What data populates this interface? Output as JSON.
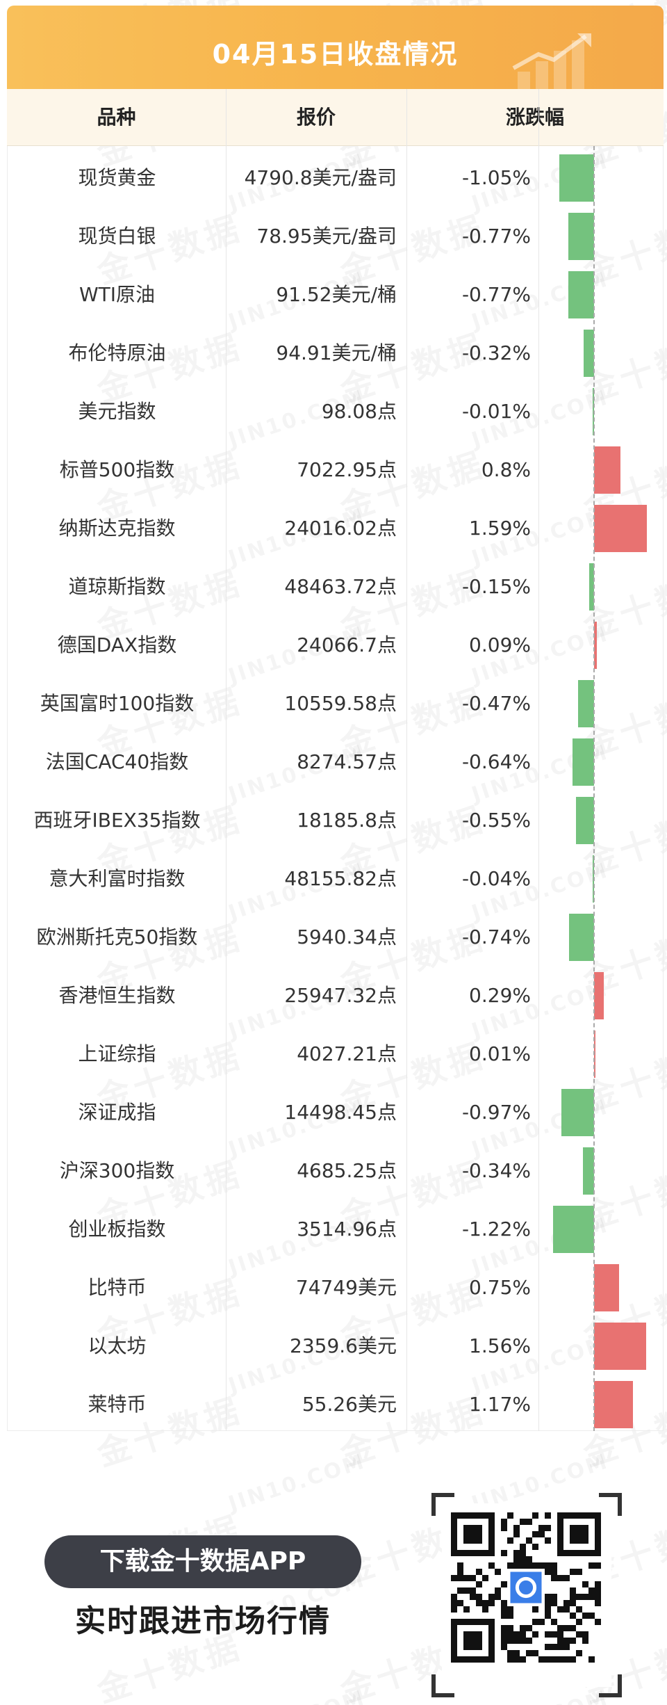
{
  "header": {
    "title": "04月15日收盘情况",
    "columns": [
      "品种",
      "报价",
      "涨跌幅"
    ]
  },
  "rows": [
    {
      "name": "现货黄金",
      "price": "4790.8美元/盎司",
      "change": "-1.05%",
      "pct": -1.05
    },
    {
      "name": "现货白银",
      "price": "78.95美元/盎司",
      "change": "-0.77%",
      "pct": -0.77
    },
    {
      "name": "WTI原油",
      "price": "91.52美元/桶",
      "change": "-0.77%",
      "pct": -0.77
    },
    {
      "name": "布伦特原油",
      "price": "94.91美元/桶",
      "change": "-0.32%",
      "pct": -0.32
    },
    {
      "name": "美元指数",
      "price": "98.08点",
      "change": "-0.01%",
      "pct": -0.01
    },
    {
      "name": "标普500指数",
      "price": "7022.95点",
      "change": "0.8%",
      "pct": 0.8
    },
    {
      "name": "纳斯达克指数",
      "price": "24016.02点",
      "change": "1.59%",
      "pct": 1.59
    },
    {
      "name": "道琼斯指数",
      "price": "48463.72点",
      "change": "-0.15%",
      "pct": -0.15
    },
    {
      "name": "德国DAX指数",
      "price": "24066.7点",
      "change": "0.09%",
      "pct": 0.09
    },
    {
      "name": "英国富时100指数",
      "price": "10559.58点",
      "change": "-0.47%",
      "pct": -0.47
    },
    {
      "name": "法国CAC40指数",
      "price": "8274.57点",
      "change": "-0.64%",
      "pct": -0.64
    },
    {
      "name": "西班牙IBEX35指数",
      "price": "18185.8点",
      "change": "-0.55%",
      "pct": -0.55
    },
    {
      "name": "意大利富时指数",
      "price": "48155.82点",
      "change": "-0.04%",
      "pct": -0.04
    },
    {
      "name": "欧洲斯托克50指数",
      "price": "5940.34点",
      "change": "-0.74%",
      "pct": -0.74
    },
    {
      "name": "香港恒生指数",
      "price": "25947.32点",
      "change": "0.29%",
      "pct": 0.29
    },
    {
      "name": "上证综指",
      "price": "4027.21点",
      "change": "0.01%",
      "pct": 0.01
    },
    {
      "name": "深证成指",
      "price": "14498.45点",
      "change": "-0.97%",
      "pct": -0.97
    },
    {
      "name": "沪深300指数",
      "price": "4685.25点",
      "change": "-0.34%",
      "pct": -0.34
    },
    {
      "name": "创业板指数",
      "price": "3514.96点",
      "change": "-1.22%",
      "pct": -1.22
    },
    {
      "name": "比特币",
      "price": "74749美元",
      "change": "0.75%",
      "pct": 0.75
    },
    {
      "name": "以太坊",
      "price": "2359.6美元",
      "change": "1.56%",
      "pct": 1.56
    },
    {
      "name": "莱特币",
      "price": "55.26美元",
      "change": "1.17%",
      "pct": 1.17
    }
  ],
  "colors": {
    "up": "#e87271",
    "down": "#74c27e",
    "banner": "#f7b44c"
  },
  "promo": {
    "button_label": "下载金十数据APP",
    "subtitle": "实时跟进市场行情"
  },
  "watermark": {
    "cn": "金十数据",
    "en": "JIN10.COM"
  }
}
